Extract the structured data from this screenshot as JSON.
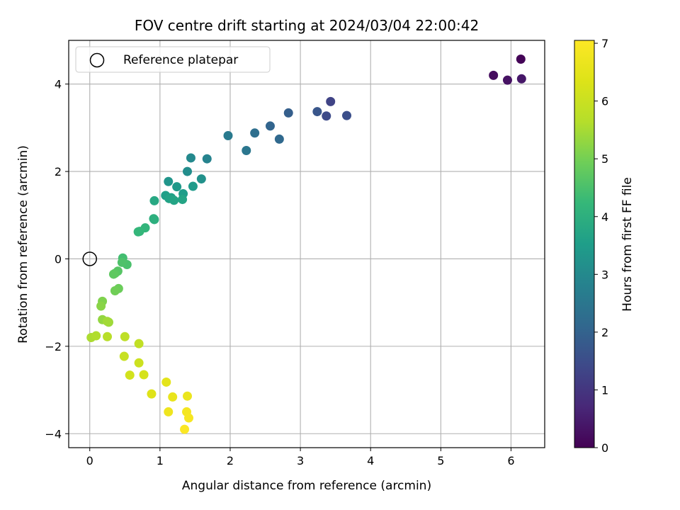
{
  "chart_data": {
    "type": "scatter",
    "title": "FOV centre drift starting at 2024/03/04 22:00:42",
    "xlabel": "Angular distance from reference (arcmin)",
    "ylabel": "Rotation from reference (arcmin)",
    "xlim": [
      -0.3,
      6.48
    ],
    "ylim": [
      -4.32,
      5.0
    ],
    "x_ticks": [
      0,
      1,
      2,
      3,
      4,
      5,
      6
    ],
    "y_ticks": [
      -4,
      -2,
      0,
      2,
      4
    ],
    "x_tick_labels": [
      "0",
      "1",
      "2",
      "3",
      "4",
      "5",
      "6"
    ],
    "y_tick_labels": [
      "−4",
      "−2",
      "0",
      "2",
      "4"
    ],
    "grid": true,
    "legend": {
      "placement": "top-left",
      "entries": [
        {
          "label": "Reference platepar",
          "marker": "open-circle",
          "color": "#000000"
        }
      ]
    },
    "reference_point": {
      "x": 0,
      "y": 0
    },
    "colorbar": {
      "label": "Hours from first FF file",
      "colormap": "viridis",
      "range": [
        0,
        7.05
      ],
      "ticks": [
        0,
        1,
        2,
        3,
        4,
        5,
        6,
        7
      ],
      "tick_labels": [
        "0",
        "1",
        "2",
        "3",
        "4",
        "5",
        "6",
        "7"
      ]
    },
    "points": [
      {
        "x": 6.14,
        "y": 4.57,
        "t": 0.05
      },
      {
        "x": 5.75,
        "y": 4.2,
        "t": 0.2
      },
      {
        "x": 5.95,
        "y": 4.09,
        "t": 0.3
      },
      {
        "x": 6.15,
        "y": 4.12,
        "t": 0.4
      },
      {
        "x": 3.43,
        "y": 3.6,
        "t": 1.3
      },
      {
        "x": 3.37,
        "y": 3.27,
        "t": 1.45
      },
      {
        "x": 3.66,
        "y": 3.28,
        "t": 1.55
      },
      {
        "x": 3.24,
        "y": 3.37,
        "t": 1.7
      },
      {
        "x": 2.83,
        "y": 3.34,
        "t": 1.9
      },
      {
        "x": 2.57,
        "y": 3.04,
        "t": 2.05
      },
      {
        "x": 2.7,
        "y": 2.74,
        "t": 2.15
      },
      {
        "x": 2.35,
        "y": 2.88,
        "t": 2.3
      },
      {
        "x": 2.23,
        "y": 2.48,
        "t": 2.5
      },
      {
        "x": 1.97,
        "y": 2.82,
        "t": 2.6
      },
      {
        "x": 1.67,
        "y": 2.29,
        "t": 2.85
      },
      {
        "x": 1.44,
        "y": 2.31,
        "t": 3.0
      },
      {
        "x": 1.39,
        "y": 2.0,
        "t": 3.1
      },
      {
        "x": 1.59,
        "y": 1.83,
        "t": 3.2
      },
      {
        "x": 1.12,
        "y": 1.77,
        "t": 3.3
      },
      {
        "x": 1.24,
        "y": 1.65,
        "t": 3.4
      },
      {
        "x": 1.47,
        "y": 1.66,
        "t": 3.45
      },
      {
        "x": 1.33,
        "y": 1.49,
        "t": 3.5
      },
      {
        "x": 1.08,
        "y": 1.45,
        "t": 3.55
      },
      {
        "x": 1.16,
        "y": 1.4,
        "t": 3.6
      },
      {
        "x": 1.13,
        "y": 1.38,
        "t": 3.65
      },
      {
        "x": 1.2,
        "y": 1.34,
        "t": 3.7
      },
      {
        "x": 1.32,
        "y": 1.36,
        "t": 3.7
      },
      {
        "x": 0.92,
        "y": 1.33,
        "t": 3.8
      },
      {
        "x": 0.92,
        "y": 0.9,
        "t": 4.0
      },
      {
        "x": 0.91,
        "y": 0.92,
        "t": 4.0
      },
      {
        "x": 0.79,
        "y": 0.71,
        "t": 4.15
      },
      {
        "x": 0.69,
        "y": 0.62,
        "t": 4.2
      },
      {
        "x": 0.71,
        "y": 0.63,
        "t": 4.2
      },
      {
        "x": 0.47,
        "y": 0.02,
        "t": 4.4
      },
      {
        "x": 0.53,
        "y": -0.13,
        "t": 4.5
      },
      {
        "x": 0.46,
        "y": -0.08,
        "t": 4.55
      },
      {
        "x": 0.4,
        "y": -0.28,
        "t": 4.65
      },
      {
        "x": 0.36,
        "y": -0.33,
        "t": 4.7
      },
      {
        "x": 0.34,
        "y": -0.35,
        "t": 4.75
      },
      {
        "x": 0.41,
        "y": -0.68,
        "t": 4.9
      },
      {
        "x": 0.36,
        "y": -0.73,
        "t": 4.95
      },
      {
        "x": 0.18,
        "y": -0.97,
        "t": 5.1
      },
      {
        "x": 0.16,
        "y": -1.08,
        "t": 5.2
      },
      {
        "x": 0.18,
        "y": -1.39,
        "t": 5.3
      },
      {
        "x": 0.27,
        "y": -1.45,
        "t": 5.4
      },
      {
        "x": 0.25,
        "y": -1.43,
        "t": 5.45
      },
      {
        "x": 0.02,
        "y": -1.8,
        "t": 5.55
      },
      {
        "x": 0.09,
        "y": -1.76,
        "t": 5.6
      },
      {
        "x": 0.25,
        "y": -1.78,
        "t": 5.7
      },
      {
        "x": 0.5,
        "y": -1.78,
        "t": 5.8
      },
      {
        "x": 0.7,
        "y": -1.94,
        "t": 5.85
      },
      {
        "x": 0.49,
        "y": -2.23,
        "t": 5.95
      },
      {
        "x": 0.7,
        "y": -2.38,
        "t": 6.05
      },
      {
        "x": 0.57,
        "y": -2.66,
        "t": 6.15
      },
      {
        "x": 0.77,
        "y": -2.65,
        "t": 6.2
      },
      {
        "x": 0.88,
        "y": -3.09,
        "t": 6.4
      },
      {
        "x": 1.09,
        "y": -2.82,
        "t": 6.5
      },
      {
        "x": 1.18,
        "y": -3.16,
        "t": 6.6
      },
      {
        "x": 1.39,
        "y": -3.14,
        "t": 6.65
      },
      {
        "x": 1.12,
        "y": -3.5,
        "t": 6.75
      },
      {
        "x": 1.38,
        "y": -3.5,
        "t": 6.85
      },
      {
        "x": 1.41,
        "y": -3.64,
        "t": 6.9
      },
      {
        "x": 1.35,
        "y": -3.9,
        "t": 7.0
      }
    ]
  }
}
